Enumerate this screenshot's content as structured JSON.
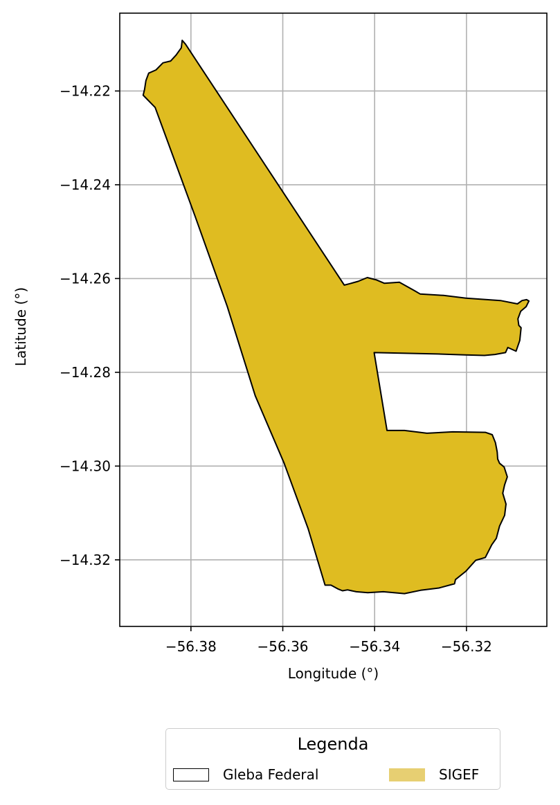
{
  "chart_data": {
    "type": "map",
    "xlabel": "Longitude (°)",
    "ylabel": "Latitude (°)",
    "xlim": [
      -56.3955,
      -56.3025
    ],
    "ylim": [
      -14.3342,
      -14.2034
    ],
    "xticks": [
      -56.38,
      -56.36,
      -56.34,
      -56.32
    ],
    "yticks": [
      -14.22,
      -14.24,
      -14.26,
      -14.28,
      -14.3,
      -14.32
    ],
    "xtick_labels": [
      "−56.38",
      "−56.36",
      "−56.34",
      "−56.32"
    ],
    "ytick_labels": [
      "−14.22",
      "−14.24",
      "−14.26",
      "−14.28",
      "−14.30",
      "−14.32"
    ],
    "grid": true,
    "layers": [
      {
        "name": "SIGEF",
        "fill": "#dfbc21",
        "stroke": "#000000",
        "polygon": [
          [
            -56.3819,
            -14.2092
          ],
          [
            -56.3812,
            -14.21
          ],
          [
            -56.3466,
            -14.2614
          ],
          [
            -56.3454,
            -14.2611
          ],
          [
            -56.3436,
            -14.2606
          ],
          [
            -56.3416,
            -14.2598
          ],
          [
            -56.3396,
            -14.2603
          ],
          [
            -56.3379,
            -14.261
          ],
          [
            -56.3346,
            -14.2608
          ],
          [
            -56.3313,
            -14.2626
          ],
          [
            -56.3301,
            -14.2633
          ],
          [
            -56.325,
            -14.2636
          ],
          [
            -56.3201,
            -14.2642
          ],
          [
            -56.3126,
            -14.2647
          ],
          [
            -56.3089,
            -14.2654
          ],
          [
            -56.3079,
            -14.2647
          ],
          [
            -56.3069,
            -14.2645
          ],
          [
            -56.3064,
            -14.2648
          ],
          [
            -56.307,
            -14.266
          ],
          [
            -56.3082,
            -14.267
          ],
          [
            -56.3088,
            -14.2686
          ],
          [
            -56.3086,
            -14.27
          ],
          [
            -56.3081,
            -14.2705
          ],
          [
            -56.3084,
            -14.2732
          ],
          [
            -56.3092,
            -14.2755
          ],
          [
            -56.311,
            -14.2747
          ],
          [
            -56.3115,
            -14.2758
          ],
          [
            -56.3138,
            -14.2762
          ],
          [
            -56.3161,
            -14.2764
          ],
          [
            -56.3203,
            -14.2763
          ],
          [
            -56.3263,
            -14.2761
          ],
          [
            -56.3401,
            -14.2758
          ],
          [
            -56.3373,
            -14.2924
          ],
          [
            -56.3335,
            -14.2924
          ],
          [
            -56.3286,
            -14.293
          ],
          [
            -56.323,
            -14.2927
          ],
          [
            -56.3159,
            -14.2928
          ],
          [
            -56.3144,
            -14.2933
          ],
          [
            -56.3137,
            -14.295
          ],
          [
            -56.3133,
            -14.297
          ],
          [
            -56.3132,
            -14.2985
          ],
          [
            -56.3128,
            -14.2994
          ],
          [
            -56.3118,
            -14.3002
          ],
          [
            -56.3111,
            -14.3023
          ],
          [
            -56.3117,
            -14.304
          ],
          [
            -56.3121,
            -14.3058
          ],
          [
            -56.3114,
            -14.3081
          ],
          [
            -56.3117,
            -14.3105
          ],
          [
            -56.3128,
            -14.3128
          ],
          [
            -56.3135,
            -14.3154
          ],
          [
            -56.3145,
            -14.3168
          ],
          [
            -56.3159,
            -14.3195
          ],
          [
            -56.318,
            -14.3201
          ],
          [
            -56.3201,
            -14.3224
          ],
          [
            -56.3224,
            -14.3242
          ],
          [
            -56.3226,
            -14.3251
          ],
          [
            -56.326,
            -14.326
          ],
          [
            -56.33,
            -14.3265
          ],
          [
            -56.3335,
            -14.3272
          ],
          [
            -56.3381,
            -14.3268
          ],
          [
            -56.3415,
            -14.327
          ],
          [
            -56.344,
            -14.3268
          ],
          [
            -56.3459,
            -14.3264
          ],
          [
            -56.347,
            -14.3266
          ],
          [
            -56.348,
            -14.3262
          ],
          [
            -56.3495,
            -14.3254
          ],
          [
            -56.3508,
            -14.3254
          ],
          [
            -56.3545,
            -14.3133
          ],
          [
            -56.3597,
            -14.2994
          ],
          [
            -56.366,
            -14.285
          ],
          [
            -56.3721,
            -14.2659
          ],
          [
            -56.3791,
            -14.2467
          ],
          [
            -56.3878,
            -14.2235
          ],
          [
            -56.3904,
            -14.2209
          ],
          [
            -56.3901,
            -14.2197
          ],
          [
            -56.3898,
            -14.2178
          ],
          [
            -56.3892,
            -14.2162
          ],
          [
            -56.3876,
            -14.2155
          ],
          [
            -56.3861,
            -14.214
          ],
          [
            -56.3844,
            -14.2136
          ],
          [
            -56.3832,
            -14.2123
          ],
          [
            -56.3821,
            -14.2108
          ],
          [
            -56.3819,
            -14.2092
          ]
        ]
      }
    ]
  },
  "legend": {
    "title": "Legenda",
    "items": [
      {
        "label": "Gleba Federal",
        "style": "outline"
      },
      {
        "label": "SIGEF",
        "style": "fill",
        "color": "#e7cf72"
      }
    ]
  }
}
